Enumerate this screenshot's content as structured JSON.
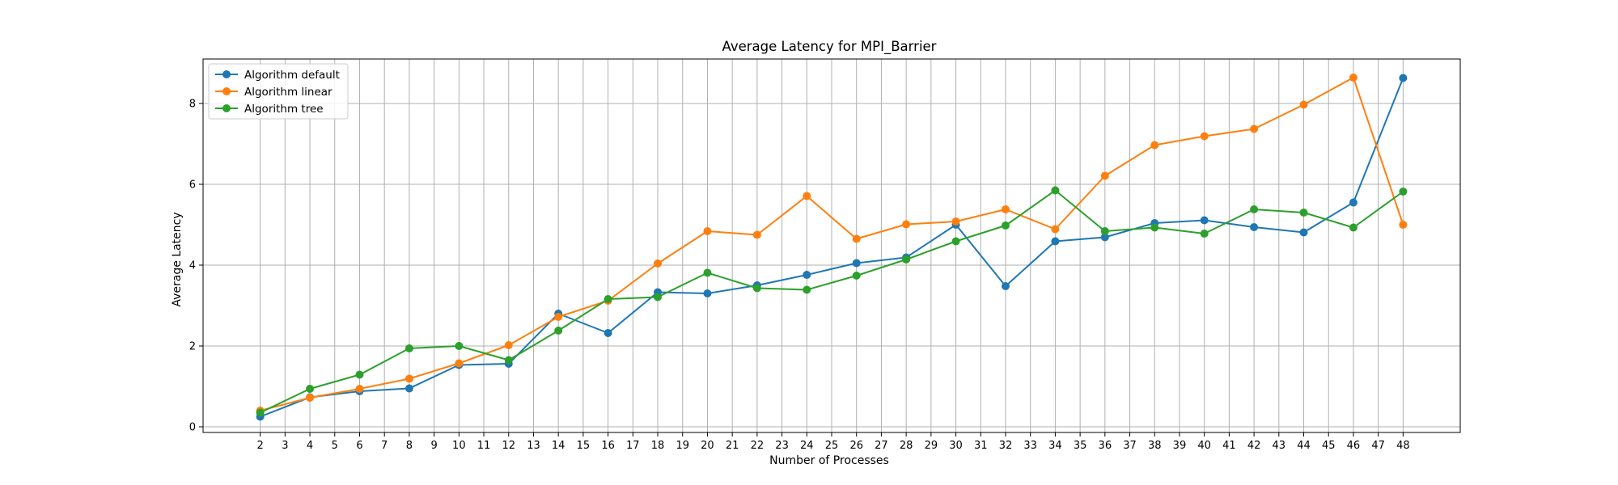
{
  "chart_data": {
    "type": "line",
    "title": "Average Latency for MPI_Barrier",
    "xlabel": "Number of Processes",
    "ylabel": "Average Latency",
    "x_ticks": [
      2,
      3,
      4,
      5,
      6,
      7,
      8,
      9,
      10,
      11,
      12,
      13,
      14,
      15,
      16,
      17,
      18,
      19,
      20,
      21,
      22,
      23,
      24,
      25,
      26,
      27,
      28,
      29,
      30,
      31,
      32,
      33,
      34,
      35,
      36,
      37,
      38,
      39,
      40,
      41,
      42,
      43,
      44,
      45,
      46,
      47,
      48
    ],
    "xlim": [
      -0.3,
      50.3
    ],
    "ylim": [
      -0.14,
      9.1
    ],
    "y_ticks": [
      0,
      2,
      4,
      6,
      8
    ],
    "grid": true,
    "legend_position": "upper-left",
    "x": [
      2,
      4,
      6,
      8,
      10,
      12,
      14,
      16,
      18,
      20,
      22,
      24,
      26,
      28,
      30,
      32,
      34,
      36,
      38,
      40,
      42,
      44,
      46,
      48
    ],
    "series": [
      {
        "name": "Algorithm default",
        "color": "#1f77b4",
        "values": [
          0.25,
          0.73,
          0.88,
          0.95,
          1.53,
          1.56,
          2.8,
          2.32,
          3.33,
          3.3,
          3.5,
          3.76,
          4.05,
          4.19,
          5.0,
          3.48,
          4.59,
          4.69,
          5.04,
          5.11,
          4.94,
          4.81,
          5.55,
          8.63
        ]
      },
      {
        "name": "Algorithm linear",
        "color": "#ff7f0e",
        "values": [
          0.4,
          0.72,
          0.94,
          1.19,
          1.57,
          2.02,
          2.72,
          3.12,
          4.04,
          4.84,
          4.75,
          5.71,
          4.65,
          5.01,
          5.08,
          5.38,
          4.89,
          6.21,
          6.97,
          7.19,
          7.37,
          7.97,
          8.64,
          5.0
        ]
      },
      {
        "name": "Algorithm tree",
        "color": "#2ca02c",
        "values": [
          0.35,
          0.94,
          1.29,
          1.94,
          2.0,
          1.65,
          2.38,
          3.16,
          3.21,
          3.81,
          3.43,
          3.39,
          3.74,
          4.14,
          4.59,
          4.98,
          5.85,
          4.84,
          4.93,
          4.78,
          5.38,
          5.3,
          4.93,
          5.82
        ]
      }
    ]
  }
}
